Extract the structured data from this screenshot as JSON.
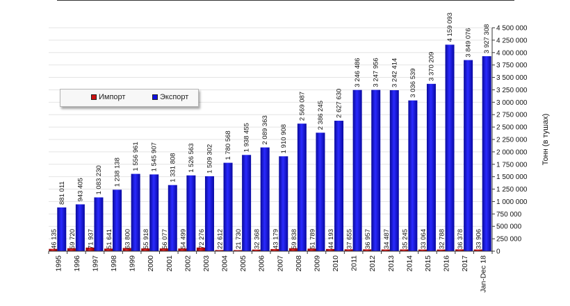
{
  "chart_data": {
    "type": "bar",
    "title": "",
    "xlabel": "",
    "ylabel": "Тонн (в тушах)",
    "ylim": [
      0,
      4500000
    ],
    "yticks": [
      0,
      250000,
      500000,
      750000,
      1000000,
      1250000,
      1500000,
      1750000,
      2000000,
      2250000,
      2500000,
      2750000,
      3000000,
      3250000,
      3500000,
      3750000,
      4000000,
      4250000,
      4500000
    ],
    "ytick_labels": [
      "0",
      "250 000",
      "500 000",
      "750 000",
      "1 000 000",
      "1 250 000",
      "1 500 000",
      "1 750 000",
      "2 000 000",
      "2 250 000",
      "2 500 000",
      "2 750 000",
      "3 000 000",
      "3 250 000",
      "3 500 000",
      "3 750 000",
      "4 000 000",
      "4 250 000",
      "4 500 000"
    ],
    "yaxis_position": "right",
    "grid": true,
    "legend_position": "upper-left",
    "categories": [
      "1995",
      "1996",
      "1997",
      "1998",
      "1999",
      "2000",
      "2001",
      "2002",
      "2003",
      "2004",
      "2005",
      "2006",
      "2007",
      "2008",
      "2009",
      "2010",
      "2011",
      "2012",
      "2013",
      "2014",
      "2015",
      "2016",
      "2017",
      "Jan-Dec 18"
    ],
    "series": [
      {
        "name": "Импорт",
        "color": "#cc1111",
        "values": [
          46135,
          59720,
          71937,
          51641,
          63800,
          55918,
          56077,
          54499,
          72276,
          22612,
          21730,
          32368,
          43179,
          59838,
          51789,
          44193,
          37655,
          36957,
          34487,
          35245,
          33064,
          32788,
          36378,
          33906
        ],
        "labels": [
          "46 135",
          "59 720",
          "71 937",
          "51 641",
          "63 800",
          "55 918",
          "56 077",
          "54 499",
          "72 276",
          "22 612",
          "21 730",
          "32 368",
          "43 179",
          "59 838",
          "51 789",
          "44 193",
          "37 655",
          "36 957",
          "34 487",
          "35 245",
          "33 064",
          "32 788",
          "36 378",
          "33 906"
        ]
      },
      {
        "name": "Экспорт",
        "color": "#1010e0",
        "values": [
          881011,
          943405,
          1083230,
          1238138,
          1556961,
          1545907,
          1331808,
          1526563,
          1509302,
          1780568,
          1938455,
          2089363,
          1910908,
          2569087,
          2386245,
          2627630,
          3246486,
          3247956,
          3242414,
          3036539,
          3370209,
          4159093,
          3849076,
          3927308
        ],
        "labels": [
          "881 011",
          "943 405",
          "1 083 230",
          "1 238 138",
          "1 556 961",
          "1 545 907",
          "1 331 808",
          "1 526 563",
          "1 509 302",
          "1 780 568",
          "1 938 455",
          "2 089 363",
          "1 910 908",
          "2 569 087",
          "2 386 245",
          "2 627 630",
          "3 246 486",
          "3 247 956",
          "3 242 414",
          "3 036 539",
          "3 370 209",
          "4 159 093",
          "3 849 076",
          "3 927 308"
        ]
      }
    ]
  }
}
